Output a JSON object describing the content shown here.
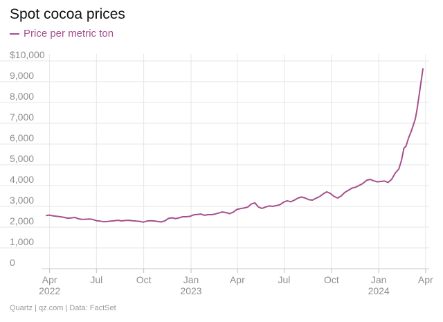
{
  "source_note": "Quartz | qz.com | Data: FactSet",
  "chart_data": {
    "type": "line",
    "title": "Spot cocoa prices",
    "legend_position": "top-left",
    "grid": true,
    "line_color": "#a4508e",
    "series": [
      {
        "name": "Price per metric ton",
        "points": [
          [
            "2022-03-25",
            2560
          ],
          [
            "2022-04-01",
            2580
          ],
          [
            "2022-04-08",
            2540
          ],
          [
            "2022-04-15",
            2520
          ],
          [
            "2022-04-22",
            2500
          ],
          [
            "2022-04-29",
            2470
          ],
          [
            "2022-05-06",
            2430
          ],
          [
            "2022-05-13",
            2440
          ],
          [
            "2022-05-20",
            2470
          ],
          [
            "2022-05-27",
            2400
          ],
          [
            "2022-06-03",
            2370
          ],
          [
            "2022-06-10",
            2380
          ],
          [
            "2022-06-17",
            2390
          ],
          [
            "2022-06-24",
            2370
          ],
          [
            "2022-07-01",
            2310
          ],
          [
            "2022-07-08",
            2290
          ],
          [
            "2022-07-15",
            2260
          ],
          [
            "2022-07-22",
            2270
          ],
          [
            "2022-07-29",
            2290
          ],
          [
            "2022-08-05",
            2310
          ],
          [
            "2022-08-12",
            2330
          ],
          [
            "2022-08-19",
            2300
          ],
          [
            "2022-08-26",
            2320
          ],
          [
            "2022-09-02",
            2330
          ],
          [
            "2022-09-09",
            2310
          ],
          [
            "2022-09-16",
            2290
          ],
          [
            "2022-09-23",
            2280
          ],
          [
            "2022-09-30",
            2240
          ],
          [
            "2022-10-07",
            2290
          ],
          [
            "2022-10-14",
            2310
          ],
          [
            "2022-10-21",
            2300
          ],
          [
            "2022-10-28",
            2270
          ],
          [
            "2022-11-04",
            2250
          ],
          [
            "2022-11-11",
            2300
          ],
          [
            "2022-11-18",
            2420
          ],
          [
            "2022-11-25",
            2450
          ],
          [
            "2022-12-02",
            2410
          ],
          [
            "2022-12-09",
            2450
          ],
          [
            "2022-12-16",
            2500
          ],
          [
            "2022-12-23",
            2500
          ],
          [
            "2022-12-30",
            2520
          ],
          [
            "2023-01-06",
            2590
          ],
          [
            "2023-01-13",
            2610
          ],
          [
            "2023-01-20",
            2630
          ],
          [
            "2023-01-27",
            2570
          ],
          [
            "2023-02-03",
            2600
          ],
          [
            "2023-02-10",
            2600
          ],
          [
            "2023-02-17",
            2630
          ],
          [
            "2023-02-24",
            2680
          ],
          [
            "2023-03-03",
            2730
          ],
          [
            "2023-03-10",
            2700
          ],
          [
            "2023-03-17",
            2650
          ],
          [
            "2023-03-24",
            2720
          ],
          [
            "2023-03-31",
            2850
          ],
          [
            "2023-04-07",
            2890
          ],
          [
            "2023-04-14",
            2920
          ],
          [
            "2023-04-21",
            2960
          ],
          [
            "2023-04-28",
            3110
          ],
          [
            "2023-05-05",
            3170
          ],
          [
            "2023-05-12",
            2970
          ],
          [
            "2023-05-19",
            2900
          ],
          [
            "2023-05-26",
            2970
          ],
          [
            "2023-06-02",
            3020
          ],
          [
            "2023-06-09",
            3000
          ],
          [
            "2023-06-16",
            3040
          ],
          [
            "2023-06-23",
            3080
          ],
          [
            "2023-06-30",
            3200
          ],
          [
            "2023-07-07",
            3270
          ],
          [
            "2023-07-14",
            3220
          ],
          [
            "2023-07-21",
            3300
          ],
          [
            "2023-07-28",
            3400
          ],
          [
            "2023-08-04",
            3450
          ],
          [
            "2023-08-11",
            3400
          ],
          [
            "2023-08-18",
            3320
          ],
          [
            "2023-08-25",
            3300
          ],
          [
            "2023-09-01",
            3390
          ],
          [
            "2023-09-08",
            3470
          ],
          [
            "2023-09-15",
            3600
          ],
          [
            "2023-09-22",
            3700
          ],
          [
            "2023-09-29",
            3620
          ],
          [
            "2023-10-06",
            3480
          ],
          [
            "2023-10-13",
            3400
          ],
          [
            "2023-10-20",
            3500
          ],
          [
            "2023-10-27",
            3670
          ],
          [
            "2023-11-03",
            3770
          ],
          [
            "2023-11-10",
            3880
          ],
          [
            "2023-11-17",
            3920
          ],
          [
            "2023-11-24",
            4010
          ],
          [
            "2023-12-01",
            4100
          ],
          [
            "2023-12-08",
            4250
          ],
          [
            "2023-12-15",
            4300
          ],
          [
            "2023-12-22",
            4230
          ],
          [
            "2023-12-29",
            4180
          ],
          [
            "2024-01-05",
            4200
          ],
          [
            "2024-01-12",
            4220
          ],
          [
            "2024-01-19",
            4150
          ],
          [
            "2024-01-26",
            4300
          ],
          [
            "2024-02-02",
            4600
          ],
          [
            "2024-02-09",
            4800
          ],
          [
            "2024-02-14",
            5200
          ],
          [
            "2024-02-19",
            5800
          ],
          [
            "2024-02-23",
            5900
          ],
          [
            "2024-02-28",
            6300
          ],
          [
            "2024-03-04",
            6600
          ],
          [
            "2024-03-08",
            6900
          ],
          [
            "2024-03-12",
            7200
          ],
          [
            "2024-03-15",
            7600
          ],
          [
            "2024-03-18",
            8100
          ],
          [
            "2024-03-21",
            8600
          ],
          [
            "2024-03-25",
            9300
          ],
          [
            "2024-03-27",
            9650
          ]
        ]
      }
    ],
    "x_ticks": [
      {
        "date": "2022-04-01",
        "label": "Apr",
        "sublabel": "2022"
      },
      {
        "date": "2022-07-01",
        "label": "Jul",
        "sublabel": ""
      },
      {
        "date": "2022-10-01",
        "label": "Oct",
        "sublabel": ""
      },
      {
        "date": "2023-01-01",
        "label": "Jan",
        "sublabel": "2023"
      },
      {
        "date": "2023-04-01",
        "label": "Apr",
        "sublabel": ""
      },
      {
        "date": "2023-07-01",
        "label": "Jul",
        "sublabel": ""
      },
      {
        "date": "2023-10-01",
        "label": "Oct",
        "sublabel": ""
      },
      {
        "date": "2024-01-01",
        "label": "Jan",
        "sublabel": "2024"
      },
      {
        "date": "2024-04-01",
        "label": "Apr",
        "sublabel": ""
      }
    ],
    "xlim": [
      "2022-03-19",
      "2024-04-08"
    ],
    "y_ticks": [
      {
        "value": 0,
        "label": "0"
      },
      {
        "value": 1000,
        "label": "1,000"
      },
      {
        "value": 2000,
        "label": "2,000"
      },
      {
        "value": 3000,
        "label": "3,000"
      },
      {
        "value": 4000,
        "label": "4,000"
      },
      {
        "value": 5000,
        "label": "5,000"
      },
      {
        "value": 6000,
        "label": "6,000"
      },
      {
        "value": 7000,
        "label": "7,000"
      },
      {
        "value": 8000,
        "label": "8,000"
      },
      {
        "value": 9000,
        "label": "9,000"
      },
      {
        "value": 10000,
        "label": "$10,000"
      }
    ],
    "ylim": [
      0,
      10000
    ]
  }
}
